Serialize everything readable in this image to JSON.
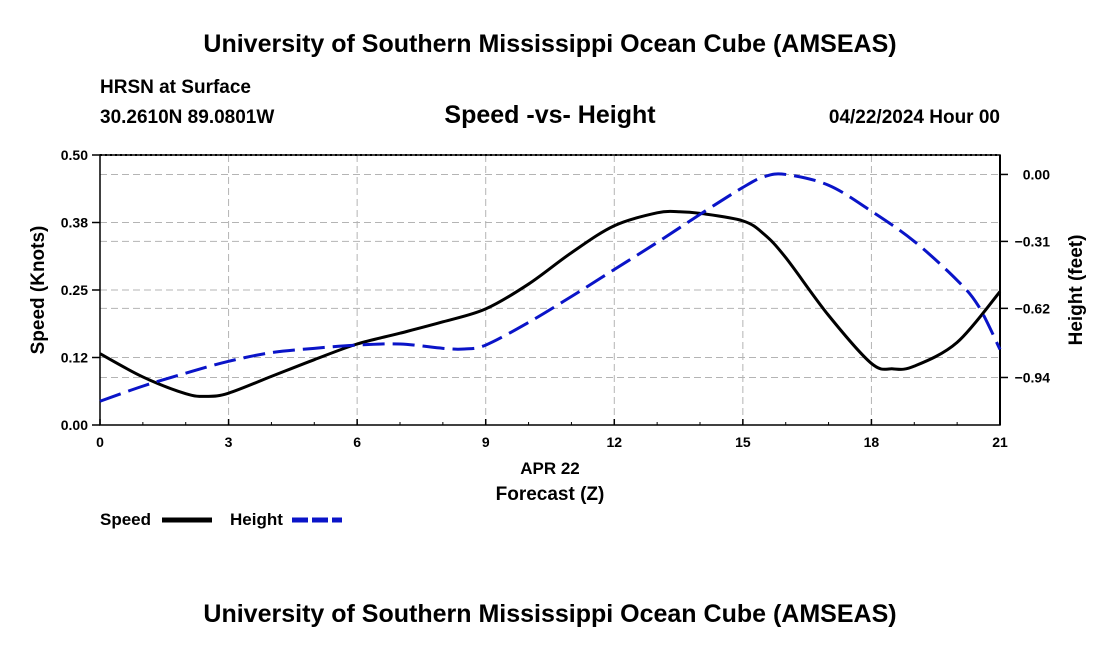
{
  "header": {
    "title": "University of Southern Mississippi Ocean Cube (AMSEAS)",
    "station": "HRSN at Surface",
    "coords": "30.2610N  89.0801W",
    "chart_title": "Speed -vs- Height",
    "datetime": "04/22/2024 Hour 00"
  },
  "footer": {
    "title": "University of Southern Mississippi Ocean Cube (AMSEAS)"
  },
  "legend": {
    "items": [
      {
        "label": "Speed",
        "color": "#000000",
        "style": "solid"
      },
      {
        "label": "Height",
        "color": "#0a14c8",
        "style": "dashed"
      }
    ]
  },
  "chart_data": {
    "type": "line",
    "title": "Speed -vs- Height",
    "xlabel": "Forecast (Z)",
    "xlabel_date": "APR 22",
    "ylabel": "Speed (Knots)",
    "y2label": "Height (feet)",
    "xlim": [
      0,
      21
    ],
    "ylim": [
      0,
      0.5
    ],
    "y2lim": [
      -1.16,
      0.09
    ],
    "x_ticks": [
      0,
      3,
      6,
      9,
      12,
      15,
      18,
      21
    ],
    "x_tick_labels": [
      "0",
      "3",
      "6",
      "9",
      "12",
      "15",
      "18",
      "21"
    ],
    "y_ticks": [
      0,
      0.125,
      0.25,
      0.375,
      0.5
    ],
    "y_tick_labels": [
      "0.00",
      "0.12",
      "0.25",
      "0.38",
      "0.50"
    ],
    "y2_ticks": [
      0,
      -0.31,
      -0.62,
      -0.94
    ],
    "y2_tick_labels": [
      "0.00",
      "−0.31",
      "−0.62",
      "−0.94"
    ],
    "grid": true,
    "series": [
      {
        "name": "Speed",
        "axis": "left",
        "color": "#000000",
        "dash": "solid",
        "x": [
          0,
          1,
          2,
          2.5,
          3,
          4,
          5,
          6,
          7,
          8,
          9,
          10,
          11,
          12,
          13,
          13.5,
          14,
          15,
          15.5,
          16,
          17,
          18,
          18.5,
          19,
          20,
          21
        ],
        "values": [
          0.132,
          0.089,
          0.058,
          0.053,
          0.059,
          0.09,
          0.121,
          0.15,
          0.17,
          0.191,
          0.215,
          0.261,
          0.319,
          0.369,
          0.393,
          0.395,
          0.392,
          0.378,
          0.353,
          0.31,
          0.203,
          0.114,
          0.104,
          0.109,
          0.153,
          0.247
        ]
      },
      {
        "name": "Height",
        "axis": "right",
        "color": "#0a14c8",
        "dash": "dashed",
        "x": [
          0,
          1,
          2,
          3,
          4,
          5,
          6,
          7,
          8,
          8.5,
          9,
          10,
          11,
          12,
          13,
          14,
          15,
          15.5,
          16,
          17,
          18,
          19,
          20,
          20.5,
          21
        ],
        "values": [
          -1.05,
          -0.98,
          -0.92,
          -0.865,
          -0.825,
          -0.805,
          -0.79,
          -0.785,
          -0.805,
          -0.808,
          -0.79,
          -0.685,
          -0.565,
          -0.44,
          -0.315,
          -0.185,
          -0.06,
          -0.01,
          0.0,
          -0.05,
          -0.17,
          -0.31,
          -0.49,
          -0.61,
          -0.81
        ]
      }
    ]
  }
}
